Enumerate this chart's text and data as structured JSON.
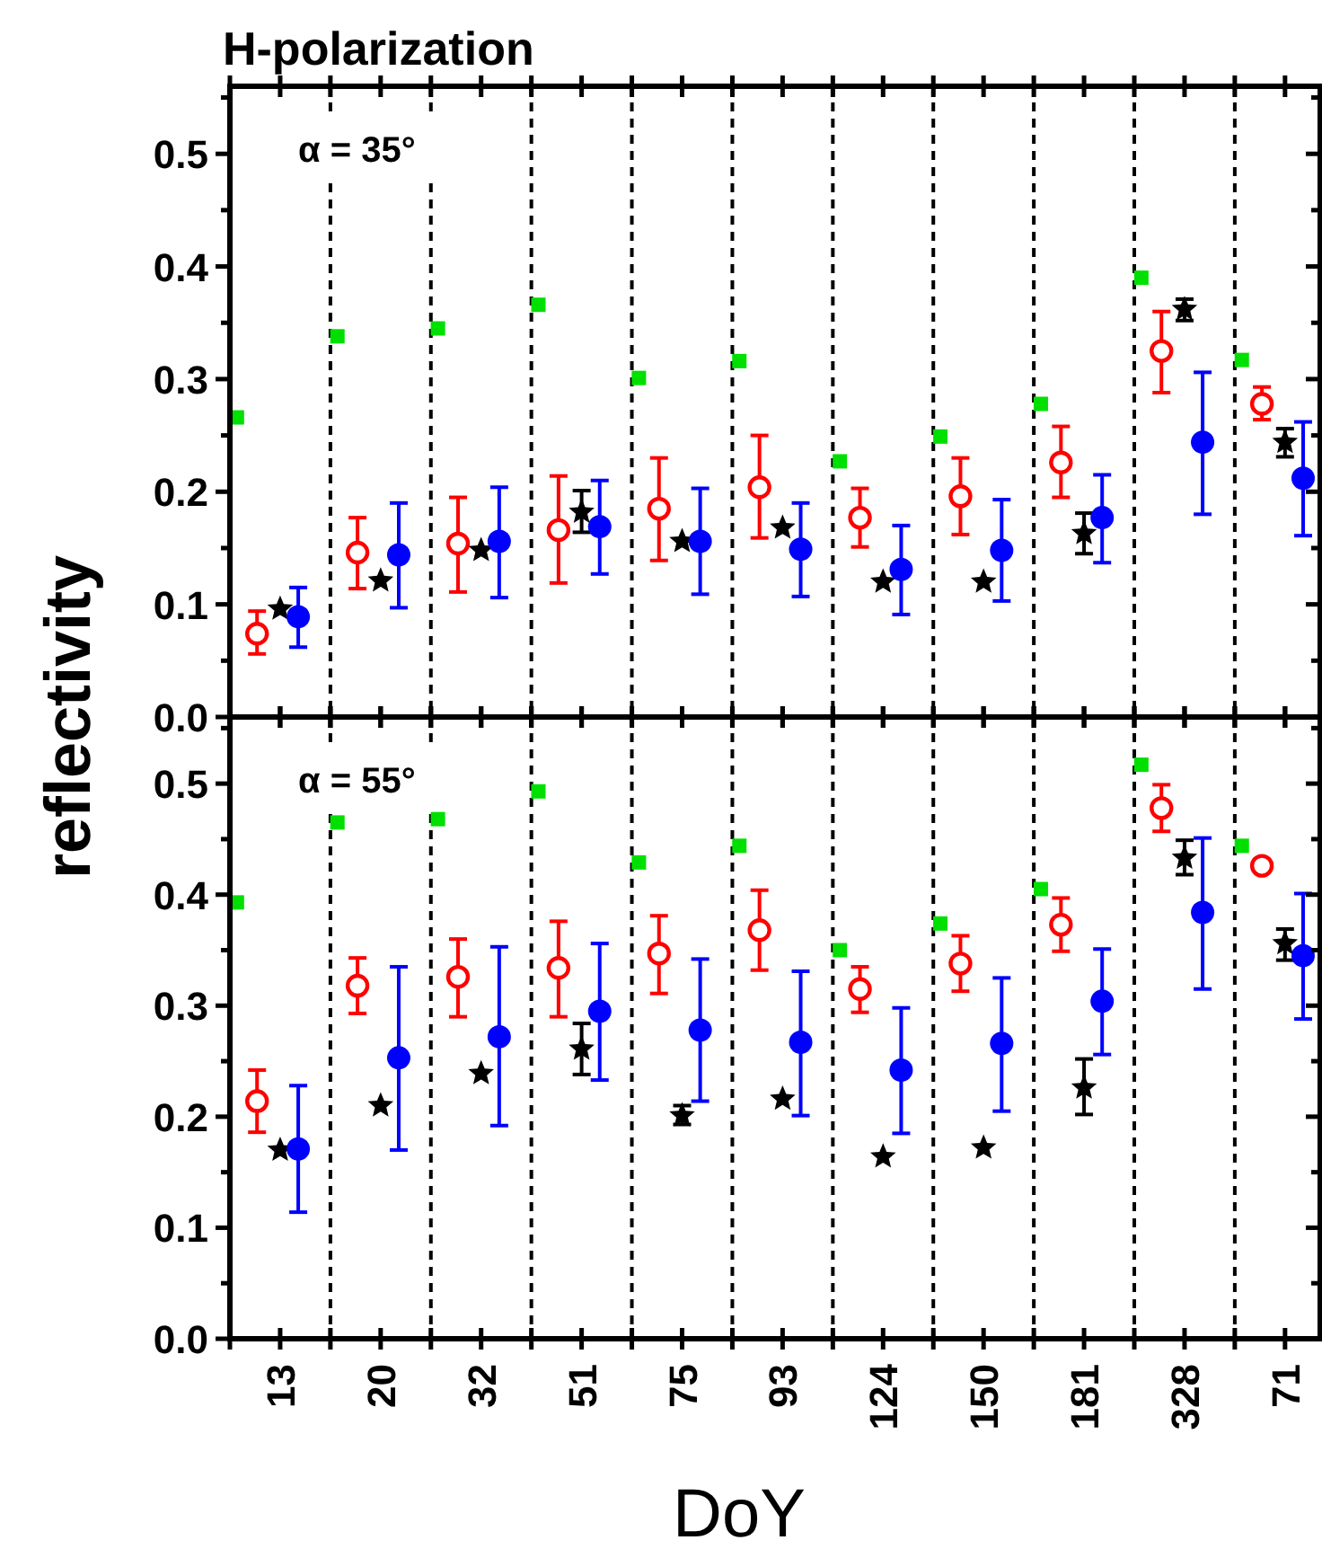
{
  "chart_data": [
    {
      "type": "scatter",
      "title": "H-polarization",
      "ylabel": "reflectivity",
      "tick_labels": "y",
      "categories": [
        "13",
        "20",
        "32",
        "51",
        "75",
        "93",
        "124",
        "150",
        "181",
        "328",
        "71"
      ],
      "ylim": [
        0,
        0.56
      ],
      "yticks": [
        {
          "value": 0,
          "label": "0.0"
        },
        {
          "value": 0.05,
          "label": null
        },
        0.1,
        {
          "value": 0.15,
          "label": null
        },
        0.2,
        {
          "value": 0.25,
          "label": null
        },
        0.3,
        {
          "value": 0.35,
          "label": null
        },
        0.4,
        {
          "value": 0.45,
          "label": null
        },
        0.5,
        {
          "value": 0.55,
          "label": null
        }
      ],
      "annotations": [
        "α = 35°"
      ],
      "series": [
        {
          "color": "#00e000",
          "marker": "square",
          "values": [
            0.266,
            0.338,
            0.345,
            0.366,
            0.301,
            0.316,
            0.227,
            0.249,
            0.278,
            0.39,
            0.317
          ]
        },
        {
          "color": "#ff0000",
          "marker": "circle",
          "values": [
            0.074,
            0.146,
            0.154,
            0.166,
            0.185,
            0.204,
            0.177,
            0.196,
            0.226,
            0.325,
            0.278
          ],
          "errors": [
            [
              0.056,
              0.094
            ],
            [
              0.114,
              0.177
            ],
            [
              0.111,
              0.195
            ],
            [
              0.119,
              0.214
            ],
            [
              0.139,
              0.23
            ],
            [
              0.159,
              0.25
            ],
            [
              0.151,
              0.203
            ],
            [
              0.162,
              0.23
            ],
            [
              0.195,
              0.258
            ],
            [
              0.288,
              0.36
            ],
            [
              0.264,
              0.293
            ]
          ]
        },
        {
          "color": "#000000",
          "marker": "star",
          "values": [
            0.096,
            0.121,
            0.148,
            0.182,
            0.156,
            0.168,
            0.12,
            0.12,
            0.163,
            0.362,
            0.244
          ],
          "errors": [
            null,
            null,
            null,
            [
              0.164,
              0.201
            ],
            null,
            null,
            null,
            null,
            [
              0.145,
              0.181
            ],
            [
              0.352,
              0.371
            ],
            [
              0.231,
              0.256
            ]
          ]
        },
        {
          "color": "#0000ff",
          "marker": "circle",
          "values": [
            0.089,
            0.144,
            0.156,
            0.169,
            0.156,
            0.149,
            0.131,
            0.148,
            0.177,
            0.244,
            0.212
          ],
          "errors": [
            [
              0.062,
              0.115
            ],
            [
              0.097,
              0.19
            ],
            [
              0.106,
              0.204
            ],
            [
              0.127,
              0.21
            ],
            [
              0.109,
              0.203
            ],
            [
              0.107,
              0.19
            ],
            [
              0.091,
              0.17
            ],
            [
              0.103,
              0.193
            ],
            [
              0.137,
              0.215
            ],
            [
              0.18,
              0.306
            ],
            [
              0.161,
              0.262
            ]
          ]
        }
      ]
    },
    {
      "type": "scatter",
      "xlabel": "DoY",
      "categories": [
        "13",
        "20",
        "32",
        "51",
        "75",
        "93",
        "124",
        "150",
        "181",
        "328",
        "71"
      ],
      "ylim": [
        0,
        0.56
      ],
      "yticks": [
        {
          "value": 0,
          "label": "0.0"
        },
        {
          "value": 0.05,
          "label": null
        },
        0.1,
        {
          "value": 0.15,
          "label": null
        },
        0.2,
        {
          "value": 0.25,
          "label": null
        },
        0.3,
        {
          "value": 0.35,
          "label": null
        },
        0.4,
        {
          "value": 0.45,
          "label": null
        },
        0.5,
        {
          "value": 0.55,
          "label": null
        }
      ],
      "annotations": [
        "α = 55°"
      ],
      "series": [
        {
          "color": "#00e000",
          "marker": "square",
          "values": [
            0.393,
            0.465,
            0.468,
            0.493,
            0.429,
            0.444,
            0.35,
            0.374,
            0.405,
            0.517,
            0.444
          ]
        },
        {
          "color": "#ff0000",
          "marker": "circle",
          "values": [
            0.214,
            0.318,
            0.326,
            0.334,
            0.347,
            0.368,
            0.315,
            0.338,
            0.373,
            0.478,
            0.426
          ],
          "errors": [
            [
              0.186,
              0.242
            ],
            [
              0.293,
              0.343
            ],
            [
              0.29,
              0.36
            ],
            [
              0.29,
              0.376
            ],
            [
              0.311,
              0.381
            ],
            [
              0.332,
              0.404
            ],
            [
              0.294,
              0.335
            ],
            [
              0.313,
              0.363
            ],
            [
              0.349,
              0.397
            ],
            [
              0.457,
              0.499
            ],
            null
          ]
        },
        {
          "color": "#000000",
          "marker": "star",
          "values": [
            0.17,
            0.21,
            0.239,
            0.261,
            0.201,
            0.216,
            0.164,
            0.172,
            0.226,
            0.433,
            0.356
          ],
          "errors": [
            null,
            null,
            null,
            [
              0.238,
              0.284
            ],
            [
              0.193,
              0.21
            ],
            null,
            null,
            null,
            [
              0.202,
              0.252
            ],
            [
              0.418,
              0.449
            ],
            [
              0.341,
              0.369
            ]
          ]
        },
        {
          "color": "#0000ff",
          "marker": "circle",
          "values": [
            0.171,
            0.253,
            0.272,
            0.295,
            0.278,
            0.267,
            0.242,
            0.266,
            0.304,
            0.384,
            0.345
          ],
          "errors": [
            [
              0.114,
              0.228
            ],
            [
              0.17,
              0.335
            ],
            [
              0.192,
              0.353
            ],
            [
              0.233,
              0.356
            ],
            [
              0.214,
              0.342
            ],
            [
              0.201,
              0.331
            ],
            [
              0.185,
              0.298
            ],
            [
              0.205,
              0.325
            ],
            [
              0.256,
              0.351
            ],
            [
              0.315,
              0.451
            ],
            [
              0.288,
              0.401
            ]
          ]
        }
      ]
    }
  ]
}
